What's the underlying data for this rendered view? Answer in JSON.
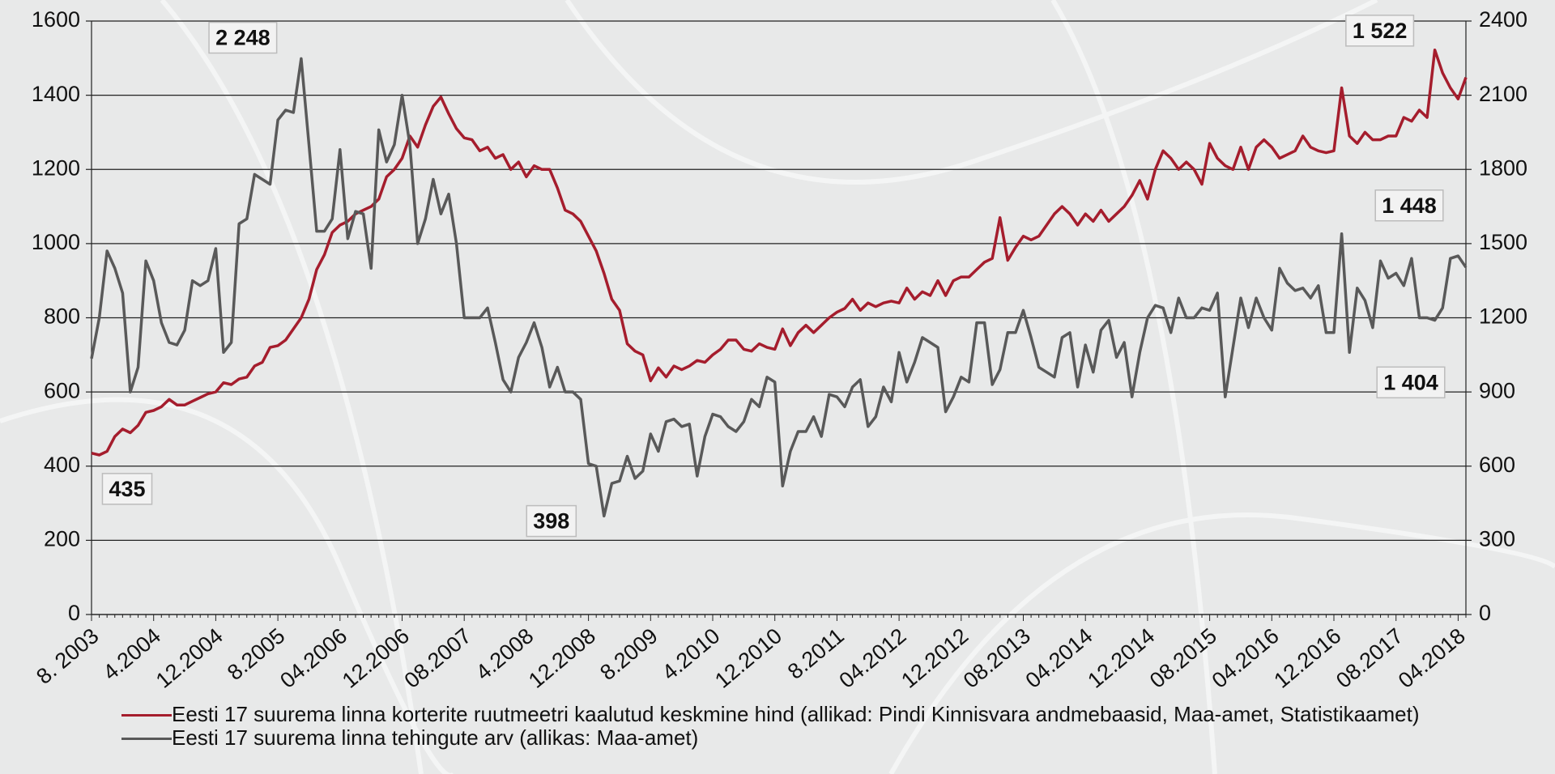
{
  "chart_data": {
    "type": "line",
    "categories": [
      "8. 2003",
      null,
      null,
      null,
      null,
      null,
      null,
      null,
      "4.2004",
      null,
      null,
      null,
      null,
      null,
      null,
      null,
      "12.2004",
      null,
      null,
      null,
      null,
      null,
      null,
      null,
      "8.2005",
      null,
      null,
      null,
      null,
      null,
      null,
      null,
      "04.2006",
      null,
      null,
      null,
      null,
      null,
      null,
      null,
      "12.2006",
      null,
      null,
      null,
      null,
      null,
      null,
      null,
      "08.2007",
      null,
      null,
      null,
      null,
      null,
      null,
      null,
      "4.2008",
      null,
      null,
      null,
      null,
      null,
      null,
      null,
      "12.2008",
      null,
      null,
      null,
      null,
      null,
      null,
      null,
      "8.2009",
      null,
      null,
      null,
      null,
      null,
      null,
      null,
      "4.2010",
      null,
      null,
      null,
      null,
      null,
      null,
      null,
      "12.2010",
      null,
      null,
      null,
      null,
      null,
      null,
      null,
      "8.2011",
      null,
      null,
      null,
      null,
      null,
      null,
      null,
      "04.2012",
      null,
      null,
      null,
      null,
      null,
      null,
      null,
      "12.2012",
      null,
      null,
      null,
      null,
      null,
      null,
      null,
      "08.2013",
      null,
      null,
      null,
      null,
      null,
      null,
      null,
      "04.2014",
      null,
      null,
      null,
      null,
      null,
      null,
      null,
      "12.2014",
      null,
      null,
      null,
      null,
      null,
      null,
      null,
      "08.2015",
      null,
      null,
      null,
      null,
      null,
      null,
      null,
      "04.2016",
      null,
      null,
      null,
      null,
      null,
      null,
      null,
      "12.2016",
      null,
      null,
      null,
      null,
      null,
      null,
      null,
      "08.2017",
      null,
      null,
      null,
      null,
      null,
      null,
      null,
      "04.2018",
      null
    ],
    "series": [
      {
        "name": "Eesti 17 suurema linna korterite ruutmeetri kaalutud keskmine hind (allikad: Pindi Kinnisvara andmebaasid, Maa-amet, Statistikaamet)",
        "color": "#a51d2d",
        "values": [
          435,
          430,
          440,
          480,
          500,
          490,
          510,
          545,
          550,
          560,
          580,
          565,
          565,
          575,
          585,
          595,
          600,
          625,
          620,
          635,
          640,
          670,
          680,
          720,
          725,
          740,
          770,
          800,
          850,
          930,
          970,
          1030,
          1050,
          1060,
          1080,
          1090,
          1100,
          1120,
          1180,
          1200,
          1230,
          1290,
          1260,
          1320,
          1370,
          1395,
          1350,
          1310,
          1285,
          1280,
          1250,
          1260,
          1230,
          1240,
          1200,
          1220,
          1180,
          1210,
          1200,
          1200,
          1150,
          1090,
          1080,
          1060,
          1020,
          980,
          920,
          850,
          820,
          730,
          710,
          700,
          630,
          665,
          640,
          670,
          660,
          670,
          685,
          680,
          700,
          715,
          740,
          740,
          715,
          710,
          730,
          720,
          715,
          770,
          725,
          760,
          780,
          760,
          780,
          800,
          815,
          825,
          850,
          820,
          840,
          830,
          840,
          845,
          840,
          880,
          850,
          870,
          860,
          900,
          860,
          900,
          910,
          910,
          930,
          950,
          960,
          1070,
          955,
          990,
          1020,
          1010,
          1020,
          1050,
          1080,
          1100,
          1080,
          1050,
          1080,
          1060,
          1090,
          1060,
          1080,
          1100,
          1130,
          1170,
          1120,
          1200,
          1250,
          1230,
          1200,
          1220,
          1200,
          1160,
          1270,
          1230,
          1210,
          1200,
          1260,
          1200,
          1260,
          1280,
          1260,
          1230,
          1240,
          1250,
          1290,
          1260,
          1250,
          1245,
          1250,
          1420,
          1290,
          1270,
          1300,
          1280,
          1280,
          1290,
          1290,
          1340,
          1330,
          1360,
          1340,
          1522,
          1460,
          1420,
          1390,
          1448
        ],
        "value_labels": [
          "435",
          null,
          null,
          null,
          null,
          null,
          null,
          null,
          null,
          null,
          null,
          null,
          null,
          null,
          null,
          null,
          null,
          null,
          null,
          null,
          null,
          null,
          null,
          null,
          null,
          null,
          null,
          null,
          null,
          null,
          null,
          null,
          null,
          null,
          null,
          null,
          null,
          null,
          null,
          null,
          null,
          null,
          null,
          null,
          null,
          null,
          null,
          null,
          null,
          null,
          null,
          null,
          null,
          null,
          null,
          null,
          null,
          null,
          null,
          null,
          null,
          null,
          null,
          null,
          null,
          null,
          null,
          null,
          null,
          null,
          null,
          null,
          null,
          null,
          null,
          null,
          null,
          null,
          null,
          null,
          null,
          null,
          null,
          null,
          null,
          null,
          null,
          null,
          null,
          null,
          null,
          null,
          null,
          null,
          null,
          null,
          null,
          null,
          null,
          null,
          null,
          null,
          null,
          null,
          null,
          null,
          null,
          null,
          null,
          null,
          null,
          null,
          null,
          null,
          null,
          null,
          null,
          null,
          null,
          null,
          null,
          null,
          null,
          null,
          null,
          null,
          null,
          null,
          null,
          null,
          null,
          null,
          null,
          null,
          null,
          null,
          null,
          null,
          null,
          null,
          null,
          null,
          null,
          null,
          null,
          null,
          null,
          null,
          null,
          null,
          null,
          null,
          null,
          null,
          null,
          null,
          null,
          null,
          null,
          null,
          null,
          null,
          null,
          null,
          null,
          null,
          null,
          null,
          null,
          null,
          null,
          null,
          null,
          "1 522",
          null,
          null,
          null,
          "1 448"
        ]
      },
      {
        "name": "Eesti 17 suurema linna tehingute arv (allikas: Maa-amet)",
        "color": "#595959",
        "axis": "y2",
        "values": [
          1035,
          1200,
          1470,
          1400,
          1300,
          900,
          1000,
          1430,
          1350,
          1180,
          1100,
          1090,
          1150,
          1350,
          1330,
          1350,
          1480,
          1060,
          1100,
          1580,
          1600,
          1780,
          1760,
          1740,
          2000,
          2040,
          2030,
          2248,
          1900,
          1550,
          1550,
          1600,
          1880,
          1520,
          1630,
          1620,
          1400,
          1960,
          1830,
          1900,
          2100,
          1900,
          1500,
          1600,
          1760,
          1620,
          1700,
          1500,
          1200,
          1200,
          1200,
          1240,
          1100,
          950,
          900,
          1040,
          1100,
          1180,
          1080,
          920,
          1000,
          900,
          900,
          870,
          610,
          600,
          398,
          530,
          540,
          640,
          550,
          580,
          730,
          660,
          780,
          790,
          760,
          770,
          560,
          720,
          810,
          800,
          760,
          740,
          780,
          870,
          840,
          960,
          940,
          520,
          660,
          740,
          740,
          800,
          720,
          890,
          880,
          840,
          920,
          950,
          760,
          800,
          920,
          860,
          1060,
          940,
          1020,
          1120,
          1100,
          1080,
          820,
          880,
          960,
          940,
          1180,
          1180,
          930,
          990,
          1140,
          1140,
          1230,
          1120,
          1000,
          980,
          960,
          1120,
          1140,
          920,
          1090,
          980,
          1150,
          1190,
          1040,
          1100,
          880,
          1060,
          1200,
          1250,
          1240,
          1140,
          1280,
          1200,
          1200,
          1240,
          1230,
          1300,
          880,
          1080,
          1280,
          1160,
          1280,
          1200,
          1150,
          1400,
          1340,
          1310,
          1320,
          1280,
          1330,
          1140,
          1140,
          1540,
          1060,
          1320,
          1270,
          1160,
          1430,
          1360,
          1380,
          1330,
          1440,
          1200,
          1200,
          1190,
          1240,
          1440,
          1450,
          1404
        ],
        "value_labels": [
          null,
          null,
          null,
          null,
          null,
          null,
          null,
          null,
          null,
          null,
          null,
          null,
          null,
          null,
          null,
          null,
          null,
          null,
          null,
          null,
          null,
          null,
          null,
          null,
          null,
          null,
          null,
          "2 248",
          null,
          null,
          null,
          null,
          null,
          null,
          null,
          null,
          null,
          null,
          null,
          null,
          null,
          null,
          null,
          null,
          null,
          null,
          null,
          null,
          null,
          null,
          null,
          null,
          null,
          null,
          null,
          null,
          null,
          null,
          null,
          null,
          null,
          null,
          null,
          null,
          null,
          null,
          "398",
          null,
          null,
          null,
          null,
          null,
          null,
          null,
          null,
          null,
          null,
          null,
          null,
          null,
          null,
          null,
          null,
          null,
          null,
          null,
          null,
          null,
          null,
          null,
          null,
          null,
          null,
          null,
          null,
          null,
          null,
          null,
          null,
          null,
          null,
          null,
          null,
          null,
          null,
          null,
          null,
          null,
          null,
          null,
          null,
          null,
          null,
          null,
          null,
          null,
          null,
          null,
          null,
          null,
          null,
          null,
          null,
          null,
          null,
          null,
          null,
          null,
          null,
          null,
          null,
          null,
          null,
          null,
          null,
          null,
          null,
          null,
          null,
          null,
          null,
          null,
          null,
          null,
          null,
          null,
          null,
          null,
          null,
          null,
          null,
          null,
          null,
          null,
          null,
          null,
          null,
          null,
          null,
          null,
          null,
          null,
          null,
          null,
          null,
          null,
          null,
          null,
          null,
          null,
          null,
          null,
          null,
          null,
          null,
          null,
          null,
          "1 404"
        ]
      }
    ],
    "ylim": [
      0,
      1600
    ],
    "yticks": [
      0,
      200,
      400,
      600,
      800,
      1000,
      1200,
      1400,
      1600
    ],
    "y2lim": [
      0,
      2400
    ],
    "y2ticks": [
      0,
      300,
      600,
      900,
      1200,
      1500,
      1800,
      2100,
      2400
    ],
    "grid": true
  }
}
